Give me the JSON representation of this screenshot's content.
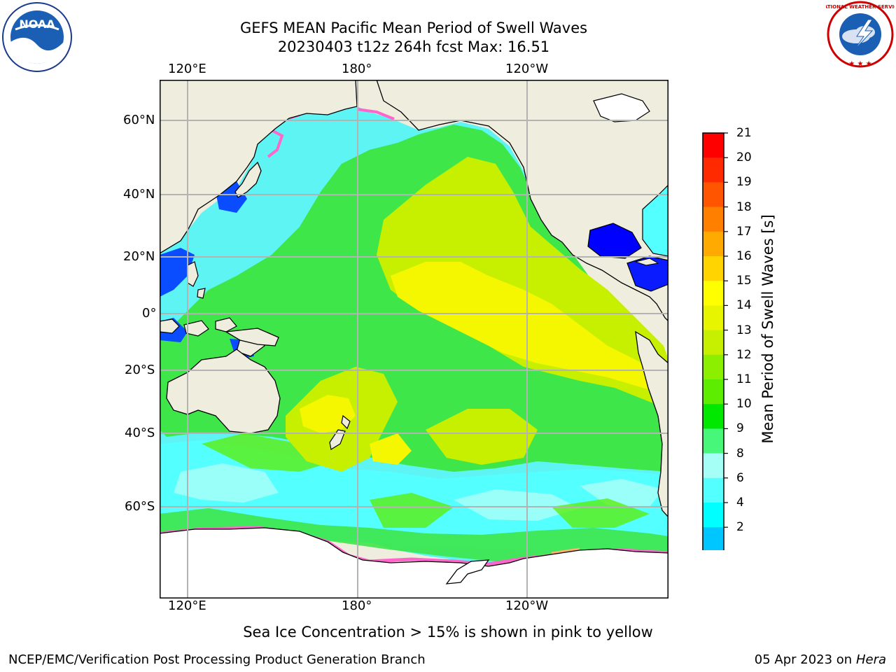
{
  "header": {
    "title_line1": "GEFS MEAN Pacific Mean Period of Swell Waves",
    "title_line2": "20230403 t12z 264h fcst   Max: 16.51"
  },
  "logos": {
    "left": {
      "icon": "noaa-logo",
      "text": "NOAA"
    },
    "right": {
      "icon": "nws-logo",
      "text": "NATIONAL WEATHER SERVICE"
    }
  },
  "map": {
    "lon_ticks": [
      "120°E",
      "180°",
      "120°W"
    ],
    "lat_ticks": [
      "60°N",
      "40°N",
      "20°N",
      "0°",
      "20°S",
      "40°S",
      "60°S"
    ],
    "colors": {
      "land": "#efedde",
      "ice_land": "#ffffff",
      "coast": "#000000",
      "grid": "#b3b3b3"
    }
  },
  "colorbar": {
    "label": "Mean Period of Swell Waves [s]",
    "ticks": [
      "21",
      "20",
      "19",
      "18",
      "17",
      "16",
      "15",
      "14",
      "13",
      "12",
      "11",
      "10",
      "9",
      "8",
      "6",
      "4",
      "2"
    ],
    "colors": [
      "#ff0000",
      "#ff2a00",
      "#ff5500",
      "#ff7f00",
      "#ffaa00",
      "#ffd400",
      "#ffff00",
      "#e8f500",
      "#c6f000",
      "#8cef00",
      "#5ced00",
      "#00e800",
      "#46f779",
      "#a6fff7",
      "#54ffff",
      "#00ffff",
      "#00c6ff",
      "#0066ff"
    ],
    "extend_color": "#0000ff"
  },
  "footer": {
    "note": "Sea Ice Concentration > 15% is shown in pink to yellow",
    "left": "NCEP/EMC/Verification Post Processing Product Generation Branch",
    "right_date": "05 Apr 2023 on ",
    "right_host": "Hera"
  }
}
